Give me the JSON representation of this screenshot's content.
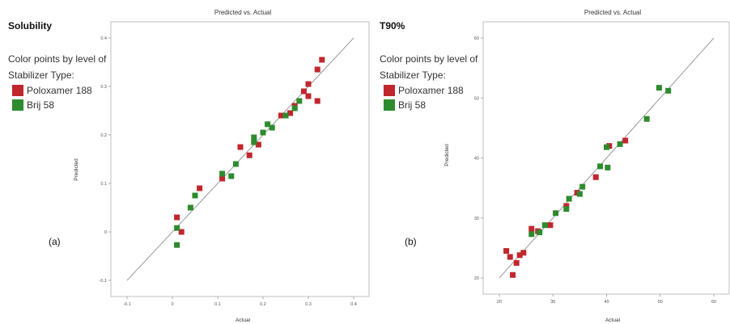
{
  "colors": {
    "poloxamer": "#c0272d",
    "brij": "#2e8b2e",
    "line": "#808080",
    "frame": "#bfbfbf"
  },
  "legend": {
    "color_points_line1": "Color points by level of",
    "color_points_line2": "Stabilizer Type:",
    "poloxamer_label": "Poloxamer 188",
    "brij_label": "Brij 58"
  },
  "chart_data": [
    {
      "type": "scatter",
      "side_title": "Solubility",
      "panel_label": "(a)",
      "title": "Predicted vs. Actual",
      "xlabel": "Actual",
      "ylabel": "Predicted",
      "xlim": [
        -0.1,
        0.4
      ],
      "ylim": [
        -0.1,
        0.4
      ],
      "xticks": [
        "-0.1",
        "0",
        "0.1",
        "0.2",
        "0.3",
        "0.4"
      ],
      "yticks": [
        "-0.1",
        "0",
        "0.1",
        "0.2",
        "0.3",
        "0.4"
      ],
      "reference_line": [
        [
          -0.1,
          -0.1
        ],
        [
          0.4,
          0.4
        ]
      ],
      "series": [
        {
          "name": "Poloxamer 188",
          "color": "poloxamer",
          "points": [
            [
              0.01,
              0.03
            ],
            [
              0.02,
              0.0
            ],
            [
              0.06,
              0.09
            ],
            [
              0.11,
              0.11
            ],
            [
              0.15,
              0.175
            ],
            [
              0.17,
              0.158
            ],
            [
              0.19,
              0.18
            ],
            [
              0.24,
              0.24
            ],
            [
              0.26,
              0.245
            ],
            [
              0.27,
              0.26
            ],
            [
              0.29,
              0.29
            ],
            [
              0.3,
              0.305
            ],
            [
              0.3,
              0.28
            ],
            [
              0.32,
              0.335
            ],
            [
              0.33,
              0.355
            ],
            [
              0.32,
              0.27
            ]
          ]
        },
        {
          "name": "Brij 58",
          "color": "brij",
          "points": [
            [
              0.01,
              0.008
            ],
            [
              0.01,
              -0.027
            ],
            [
              0.04,
              0.05
            ],
            [
              0.05,
              0.075
            ],
            [
              0.11,
              0.12
            ],
            [
              0.13,
              0.115
            ],
            [
              0.14,
              0.14
            ],
            [
              0.18,
              0.195
            ],
            [
              0.18,
              0.185
            ],
            [
              0.2,
              0.205
            ],
            [
              0.21,
              0.222
            ],
            [
              0.22,
              0.215
            ],
            [
              0.25,
              0.24
            ],
            [
              0.27,
              0.255
            ],
            [
              0.28,
              0.27
            ]
          ]
        }
      ]
    },
    {
      "type": "scatter",
      "side_title": "T90%",
      "panel_label": "(b)",
      "title": "Predicted vs. Actual",
      "xlabel": "Actual",
      "ylabel": "Predicted",
      "xlim": [
        20,
        60
      ],
      "ylim": [
        20,
        60
      ],
      "xticks": [
        "20",
        "30",
        "40",
        "50",
        "60"
      ],
      "yticks": [
        "20",
        "30",
        "40",
        "50",
        "60"
      ],
      "reference_line": [
        [
          20,
          20
        ],
        [
          60,
          60
        ]
      ],
      "series": [
        {
          "name": "Poloxamer 188",
          "color": "poloxamer",
          "points": [
            [
              21.3,
              24.5
            ],
            [
              22.0,
              23.5
            ],
            [
              22.5,
              20.5
            ],
            [
              23.2,
              22.5
            ],
            [
              23.8,
              23.8
            ],
            [
              24.5,
              24.2
            ],
            [
              26.0,
              28.2
            ],
            [
              27.2,
              27.8
            ],
            [
              29.5,
              28.8
            ],
            [
              32.5,
              32.0
            ],
            [
              34.5,
              34.2
            ],
            [
              38.0,
              36.8
            ],
            [
              40.5,
              42.0
            ],
            [
              43.5,
              42.9
            ]
          ]
        },
        {
          "name": "Brij 58",
          "color": "brij",
          "points": [
            [
              26.0,
              27.3
            ],
            [
              27.5,
              27.6
            ],
            [
              28.5,
              28.8
            ],
            [
              30.5,
              30.8
            ],
            [
              32.5,
              31.5
            ],
            [
              33.0,
              33.2
            ],
            [
              35.0,
              34.0
            ],
            [
              35.5,
              35.2
            ],
            [
              38.8,
              38.6
            ],
            [
              40.0,
              41.8
            ],
            [
              40.2,
              38.4
            ],
            [
              42.5,
              42.3
            ],
            [
              47.5,
              46.5
            ],
            [
              49.8,
              51.7
            ],
            [
              51.5,
              51.2
            ]
          ]
        }
      ]
    }
  ]
}
